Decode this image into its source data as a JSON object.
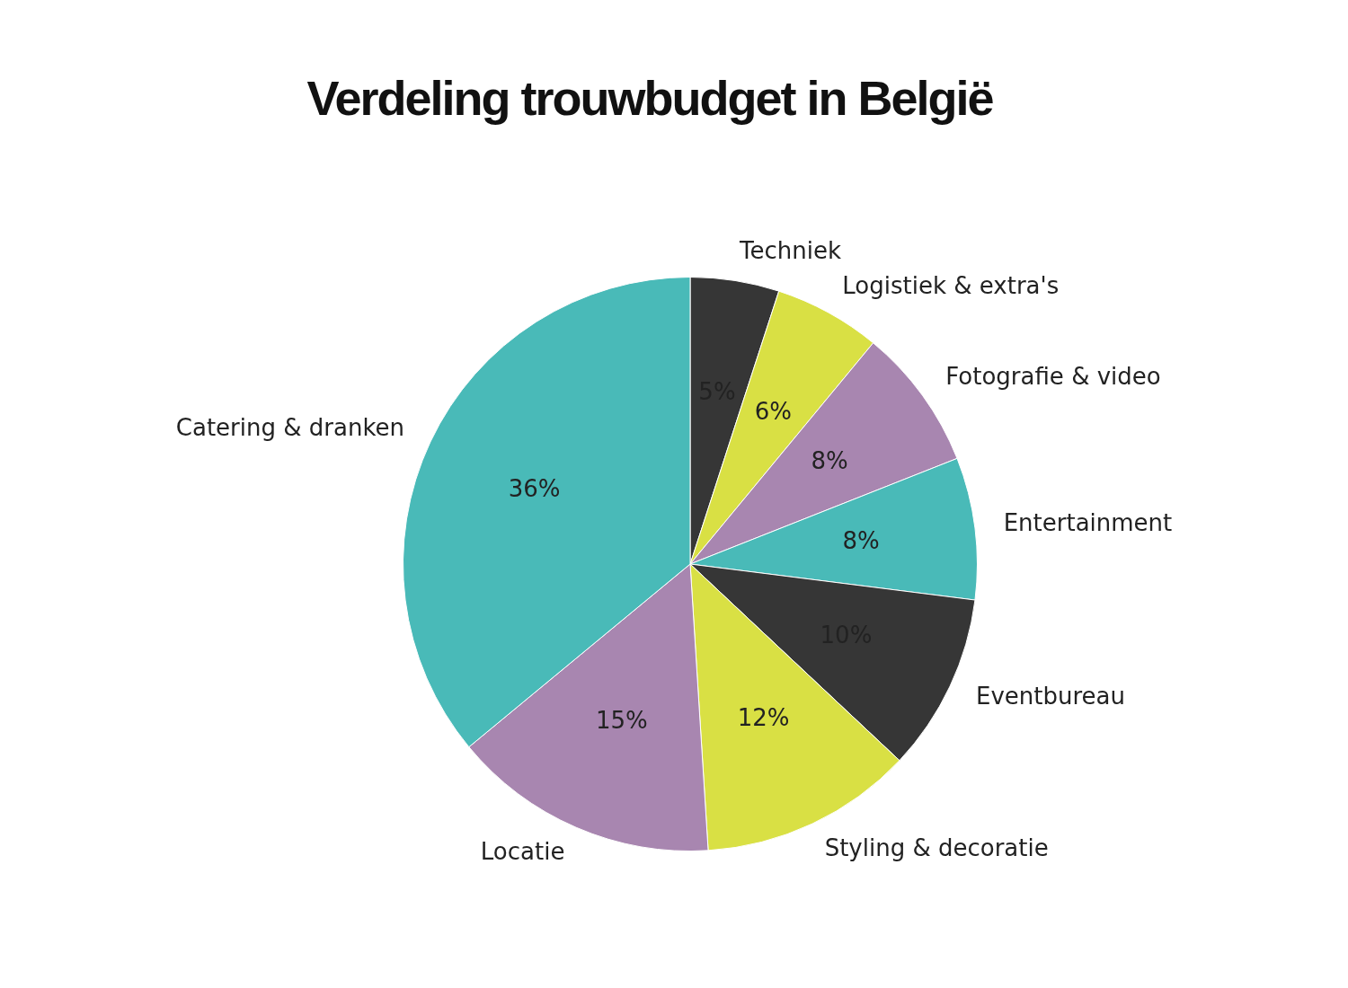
{
  "chart_data": {
    "type": "pie",
    "title": "Verdeling trouwbudget in België",
    "categories": [
      "Techniek",
      "Logistiek & extra's",
      "Fotografie & video",
      "Entertainment",
      "Eventbureau",
      "Styling & decoratie",
      "Locatie",
      "Catering & dranken"
    ],
    "values": [
      5,
      6,
      8,
      8,
      10,
      12,
      15,
      36
    ],
    "value_labels": [
      "5%",
      "6%",
      "8%",
      "8%",
      "10%",
      "12%",
      "15%",
      "36%"
    ],
    "colors": [
      "#363636",
      "#d9e044",
      "#a886b0",
      "#49bab8",
      "#363636",
      "#d9e044",
      "#a886b0",
      "#49bab8"
    ],
    "legend": false
  }
}
